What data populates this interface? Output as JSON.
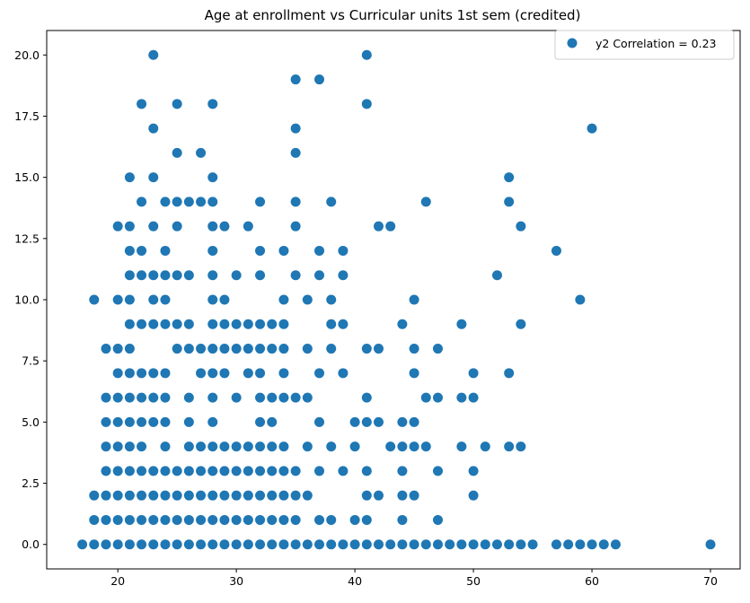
{
  "chart_data": {
    "type": "scatter",
    "title": "Age at enrollment vs Curricular units 1st sem (credited)",
    "xlabel": "",
    "ylabel": "",
    "xlim": [
      14,
      72.5
    ],
    "ylim": [
      -1,
      21
    ],
    "xticks": [
      20,
      30,
      40,
      50,
      60,
      70
    ],
    "yticks": [
      0.0,
      2.5,
      5.0,
      7.5,
      10.0,
      12.5,
      15.0,
      17.5,
      20.0
    ],
    "legend": {
      "location": "top-right",
      "entries": [
        "y2 Correlation = 0.23"
      ]
    },
    "grid": false,
    "series": [
      {
        "name": "y2 Correlation = 0.23",
        "color": "#1f77b4",
        "points": [
          [
            17,
            0
          ],
          [
            18,
            0
          ],
          [
            19,
            0
          ],
          [
            20,
            0
          ],
          [
            21,
            0
          ],
          [
            22,
            0
          ],
          [
            23,
            0
          ],
          [
            24,
            0
          ],
          [
            25,
            0
          ],
          [
            26,
            0
          ],
          [
            27,
            0
          ],
          [
            28,
            0
          ],
          [
            29,
            0
          ],
          [
            30,
            0
          ],
          [
            31,
            0
          ],
          [
            32,
            0
          ],
          [
            33,
            0
          ],
          [
            34,
            0
          ],
          [
            35,
            0
          ],
          [
            36,
            0
          ],
          [
            37,
            0
          ],
          [
            38,
            0
          ],
          [
            39,
            0
          ],
          [
            40,
            0
          ],
          [
            41,
            0
          ],
          [
            42,
            0
          ],
          [
            43,
            0
          ],
          [
            44,
            0
          ],
          [
            45,
            0
          ],
          [
            46,
            0
          ],
          [
            47,
            0
          ],
          [
            48,
            0
          ],
          [
            49,
            0
          ],
          [
            50,
            0
          ],
          [
            51,
            0
          ],
          [
            52,
            0
          ],
          [
            53,
            0
          ],
          [
            54,
            0
          ],
          [
            55,
            0
          ],
          [
            57,
            0
          ],
          [
            58,
            0
          ],
          [
            59,
            0
          ],
          [
            60,
            0
          ],
          [
            61,
            0
          ],
          [
            62,
            0
          ],
          [
            70,
            0
          ],
          [
            18,
            1
          ],
          [
            19,
            1
          ],
          [
            20,
            1
          ],
          [
            21,
            1
          ],
          [
            22,
            1
          ],
          [
            23,
            1
          ],
          [
            24,
            1
          ],
          [
            25,
            1
          ],
          [
            26,
            1
          ],
          [
            27,
            1
          ],
          [
            28,
            1
          ],
          [
            29,
            1
          ],
          [
            30,
            1
          ],
          [
            31,
            1
          ],
          [
            32,
            1
          ],
          [
            33,
            1
          ],
          [
            34,
            1
          ],
          [
            35,
            1
          ],
          [
            37,
            1
          ],
          [
            38,
            1
          ],
          [
            40,
            1
          ],
          [
            41,
            1
          ],
          [
            44,
            1
          ],
          [
            47,
            1
          ],
          [
            18,
            2
          ],
          [
            19,
            2
          ],
          [
            20,
            2
          ],
          [
            21,
            2
          ],
          [
            22,
            2
          ],
          [
            23,
            2
          ],
          [
            24,
            2
          ],
          [
            25,
            2
          ],
          [
            26,
            2
          ],
          [
            27,
            2
          ],
          [
            28,
            2
          ],
          [
            29,
            2
          ],
          [
            30,
            2
          ],
          [
            31,
            2
          ],
          [
            32,
            2
          ],
          [
            33,
            2
          ],
          [
            34,
            2
          ],
          [
            35,
            2
          ],
          [
            36,
            2
          ],
          [
            41,
            2
          ],
          [
            42,
            2
          ],
          [
            44,
            2
          ],
          [
            45,
            2
          ],
          [
            50,
            2
          ],
          [
            19,
            3
          ],
          [
            20,
            3
          ],
          [
            21,
            3
          ],
          [
            22,
            3
          ],
          [
            23,
            3
          ],
          [
            24,
            3
          ],
          [
            25,
            3
          ],
          [
            26,
            3
          ],
          [
            27,
            3
          ],
          [
            28,
            3
          ],
          [
            29,
            3
          ],
          [
            30,
            3
          ],
          [
            31,
            3
          ],
          [
            32,
            3
          ],
          [
            33,
            3
          ],
          [
            34,
            3
          ],
          [
            35,
            3
          ],
          [
            37,
            3
          ],
          [
            39,
            3
          ],
          [
            41,
            3
          ],
          [
            44,
            3
          ],
          [
            47,
            3
          ],
          [
            50,
            3
          ],
          [
            19,
            4
          ],
          [
            20,
            4
          ],
          [
            21,
            4
          ],
          [
            22,
            4
          ],
          [
            24,
            4
          ],
          [
            26,
            4
          ],
          [
            27,
            4
          ],
          [
            28,
            4
          ],
          [
            29,
            4
          ],
          [
            30,
            4
          ],
          [
            31,
            4
          ],
          [
            32,
            4
          ],
          [
            33,
            4
          ],
          [
            34,
            4
          ],
          [
            36,
            4
          ],
          [
            38,
            4
          ],
          [
            40,
            4
          ],
          [
            43,
            4
          ],
          [
            44,
            4
          ],
          [
            45,
            4
          ],
          [
            46,
            4
          ],
          [
            49,
            4
          ],
          [
            51,
            4
          ],
          [
            53,
            4
          ],
          [
            54,
            4
          ],
          [
            19,
            5
          ],
          [
            20,
            5
          ],
          [
            21,
            5
          ],
          [
            22,
            5
          ],
          [
            23,
            5
          ],
          [
            24,
            5
          ],
          [
            26,
            5
          ],
          [
            28,
            5
          ],
          [
            32,
            5
          ],
          [
            33,
            5
          ],
          [
            37,
            5
          ],
          [
            40,
            5
          ],
          [
            41,
            5
          ],
          [
            42,
            5
          ],
          [
            44,
            5
          ],
          [
            45,
            5
          ],
          [
            19,
            6
          ],
          [
            20,
            6
          ],
          [
            21,
            6
          ],
          [
            22,
            6
          ],
          [
            23,
            6
          ],
          [
            24,
            6
          ],
          [
            26,
            6
          ],
          [
            28,
            6
          ],
          [
            30,
            6
          ],
          [
            32,
            6
          ],
          [
            33,
            6
          ],
          [
            34,
            6
          ],
          [
            35,
            6
          ],
          [
            36,
            6
          ],
          [
            41,
            6
          ],
          [
            46,
            6
          ],
          [
            47,
            6
          ],
          [
            49,
            6
          ],
          [
            50,
            6
          ],
          [
            20,
            7
          ],
          [
            21,
            7
          ],
          [
            22,
            7
          ],
          [
            23,
            7
          ],
          [
            24,
            7
          ],
          [
            27,
            7
          ],
          [
            28,
            7
          ],
          [
            29,
            7
          ],
          [
            31,
            7
          ],
          [
            32,
            7
          ],
          [
            34,
            7
          ],
          [
            37,
            7
          ],
          [
            39,
            7
          ],
          [
            45,
            7
          ],
          [
            50,
            7
          ],
          [
            53,
            7
          ],
          [
            19,
            8
          ],
          [
            20,
            8
          ],
          [
            21,
            8
          ],
          [
            25,
            8
          ],
          [
            26,
            8
          ],
          [
            27,
            8
          ],
          [
            28,
            8
          ],
          [
            29,
            8
          ],
          [
            30,
            8
          ],
          [
            31,
            8
          ],
          [
            32,
            8
          ],
          [
            33,
            8
          ],
          [
            34,
            8
          ],
          [
            36,
            8
          ],
          [
            38,
            8
          ],
          [
            41,
            8
          ],
          [
            42,
            8
          ],
          [
            45,
            8
          ],
          [
            47,
            8
          ],
          [
            21,
            9
          ],
          [
            22,
            9
          ],
          [
            23,
            9
          ],
          [
            24,
            9
          ],
          [
            25,
            9
          ],
          [
            26,
            9
          ],
          [
            28,
            9
          ],
          [
            29,
            9
          ],
          [
            30,
            9
          ],
          [
            31,
            9
          ],
          [
            32,
            9
          ],
          [
            33,
            9
          ],
          [
            34,
            9
          ],
          [
            38,
            9
          ],
          [
            39,
            9
          ],
          [
            44,
            9
          ],
          [
            49,
            9
          ],
          [
            54,
            9
          ],
          [
            18,
            10
          ],
          [
            20,
            10
          ],
          [
            21,
            10
          ],
          [
            23,
            10
          ],
          [
            24,
            10
          ],
          [
            28,
            10
          ],
          [
            29,
            10
          ],
          [
            34,
            10
          ],
          [
            36,
            10
          ],
          [
            38,
            10
          ],
          [
            45,
            10
          ],
          [
            59,
            10
          ],
          [
            21,
            11
          ],
          [
            22,
            11
          ],
          [
            23,
            11
          ],
          [
            24,
            11
          ],
          [
            25,
            11
          ],
          [
            26,
            11
          ],
          [
            28,
            11
          ],
          [
            30,
            11
          ],
          [
            32,
            11
          ],
          [
            35,
            11
          ],
          [
            37,
            11
          ],
          [
            39,
            11
          ],
          [
            52,
            11
          ],
          [
            21,
            12
          ],
          [
            22,
            12
          ],
          [
            24,
            12
          ],
          [
            28,
            12
          ],
          [
            32,
            12
          ],
          [
            34,
            12
          ],
          [
            37,
            12
          ],
          [
            39,
            12
          ],
          [
            57,
            12
          ],
          [
            20,
            13
          ],
          [
            21,
            13
          ],
          [
            23,
            13
          ],
          [
            25,
            13
          ],
          [
            28,
            13
          ],
          [
            29,
            13
          ],
          [
            31,
            13
          ],
          [
            35,
            13
          ],
          [
            42,
            13
          ],
          [
            43,
            13
          ],
          [
            54,
            13
          ],
          [
            22,
            14
          ],
          [
            24,
            14
          ],
          [
            25,
            14
          ],
          [
            26,
            14
          ],
          [
            27,
            14
          ],
          [
            28,
            14
          ],
          [
            32,
            14
          ],
          [
            35,
            14
          ],
          [
            38,
            14
          ],
          [
            46,
            14
          ],
          [
            53,
            14
          ],
          [
            21,
            15
          ],
          [
            23,
            15
          ],
          [
            28,
            15
          ],
          [
            53,
            15
          ],
          [
            25,
            16
          ],
          [
            27,
            16
          ],
          [
            35,
            16
          ],
          [
            23,
            17
          ],
          [
            35,
            17
          ],
          [
            60,
            17
          ],
          [
            22,
            18
          ],
          [
            25,
            18
          ],
          [
            28,
            18
          ],
          [
            41,
            18
          ],
          [
            35,
            19
          ],
          [
            37,
            19
          ],
          [
            23,
            20
          ],
          [
            41,
            20
          ]
        ]
      }
    ]
  }
}
